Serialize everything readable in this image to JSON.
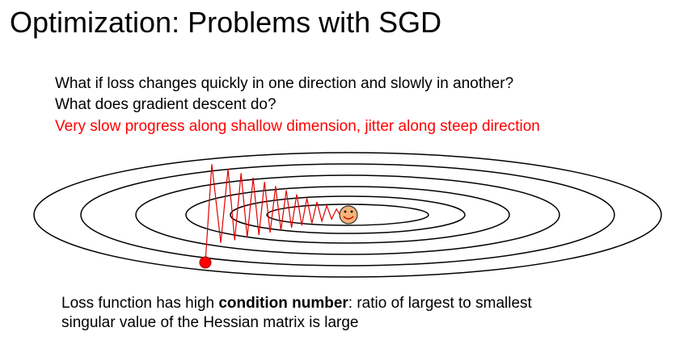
{
  "slide": {
    "title": "Optimization: Problems with SGD",
    "question_1": "What if loss changes quickly in one direction and slowly in another?",
    "question_2": "What does gradient descent do?",
    "answer": "Very slow progress along shallow dimension, jitter along steep direction",
    "conclusion_prefix": "Loss function has high ",
    "conclusion_bold": "condition number",
    "conclusion_suffix": ": ratio of largest to smallest",
    "conclusion_line2": "singular value of the Hessian matrix is large"
  },
  "colors": {
    "text": "#000000",
    "accent": "#ff0000",
    "contour": "#000000",
    "path": "#e00000",
    "start_point": "#ff0000",
    "minimum_face": "#f5b37a"
  },
  "icons": {
    "start_marker": "red-dot-icon",
    "minimum_marker": "smiley-face-icon"
  }
}
